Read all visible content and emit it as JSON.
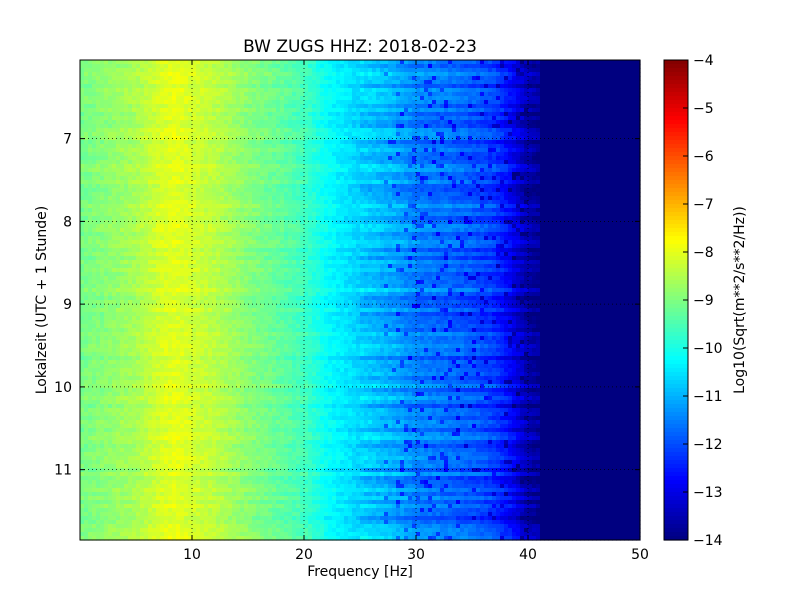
{
  "chart_data": {
    "type": "heatmap",
    "title": "BW ZUGS HHZ: 2018-02-23",
    "xlabel": "Frequency [Hz]",
    "ylabel": "Lokalzeit (UTC + 1 Stunde)",
    "xlim": [
      0,
      50
    ],
    "ylim": [
      11.85,
      6.05
    ],
    "y_inverted": true,
    "xticks": [
      10,
      20,
      30,
      40,
      50
    ],
    "yticks": [
      7,
      8,
      9,
      10,
      11
    ],
    "grid": true,
    "colormap": "jet",
    "colorbar": {
      "label": "Log10(Sqrt(m**2/s**2/Hz))",
      "min": -14,
      "max": -4,
      "ticks": [
        -4,
        -5,
        -6,
        -7,
        -8,
        -9,
        -10,
        -11,
        -12,
        -13,
        -14
      ]
    },
    "frequency_profile": {
      "frequency_hz": [
        0,
        2,
        5,
        7,
        8.5,
        10,
        12,
        15,
        18,
        20,
        22,
        25,
        28,
        30,
        33,
        35,
        37,
        38.5,
        40,
        42,
        45,
        50
      ],
      "log10_amplitude": [
        -9.1,
        -8.9,
        -8.6,
        -8.2,
        -8.0,
        -8.2,
        -8.4,
        -8.9,
        -9.3,
        -9.6,
        -10.2,
        -10.7,
        -11.1,
        -11.5,
        -11.7,
        -11.9,
        -12.2,
        -12.8,
        -13.6,
        -14,
        -14,
        -14
      ]
    }
  },
  "colors": {
    "text": "#000000",
    "grid": "#000000",
    "frame": "#000000"
  }
}
